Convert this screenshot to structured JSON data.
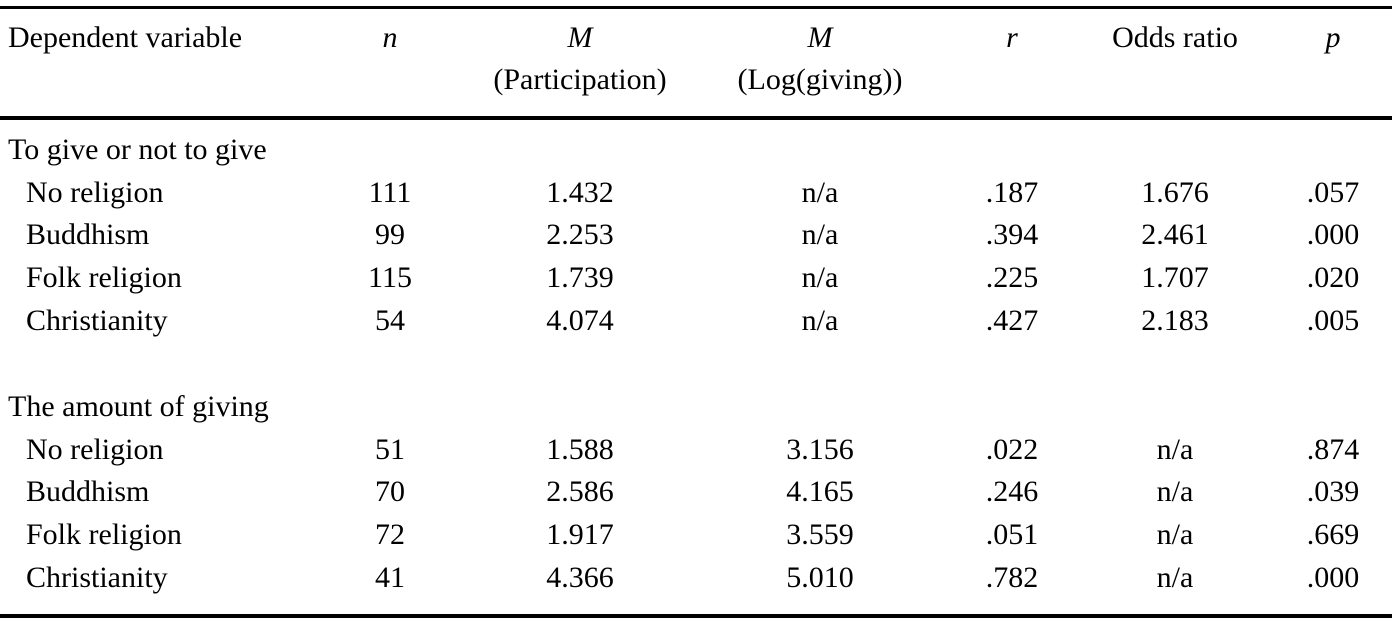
{
  "table": {
    "header": [
      {
        "label": "Dependent variable"
      },
      {
        "symbol": "n"
      },
      {
        "symbol": "M",
        "label": "(Participation)"
      },
      {
        "symbol": "M",
        "label": "(Log(giving))"
      },
      {
        "symbol": "r"
      },
      {
        "label": "Odds ratio"
      },
      {
        "symbol": "p"
      }
    ],
    "sections": [
      {
        "title": "To give or not to give",
        "rows": [
          [
            "No religion",
            "111",
            "1.432",
            "n/a",
            ".187",
            "1.676",
            ".057"
          ],
          [
            "Buddhism",
            "99",
            "2.253",
            "n/a",
            ".394",
            "2.461",
            ".000"
          ],
          [
            "Folk religion",
            "115",
            "1.739",
            "n/a",
            ".225",
            "1.707",
            ".020"
          ],
          [
            "Christianity",
            "54",
            "4.074",
            "n/a",
            ".427",
            "2.183",
            ".005"
          ]
        ]
      },
      {
        "title": "The amount of giving",
        "rows": [
          [
            "No religion",
            "51",
            "1.588",
            "3.156",
            ".022",
            "n/a",
            ".874"
          ],
          [
            "Buddhism",
            "70",
            "2.586",
            "4.165",
            ".246",
            "n/a",
            ".039"
          ],
          [
            "Folk religion",
            "72",
            "1.917",
            "3.559",
            ".051",
            "n/a",
            ".669"
          ],
          [
            "Christianity",
            "41",
            "4.366",
            "5.010",
            ".782",
            "n/a",
            ".000"
          ]
        ]
      }
    ]
  }
}
